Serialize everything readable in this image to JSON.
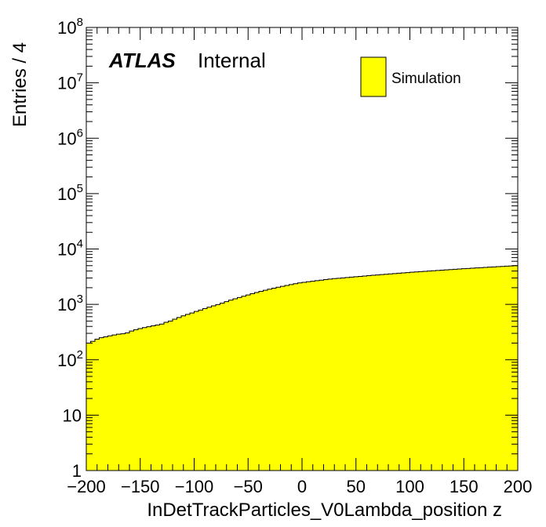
{
  "chart_data": {
    "type": "bar",
    "subtype": "histogram",
    "xlabel": "InDetTrackParticles_V0Lambda_position z",
    "ylabel": "Entries / 4",
    "xlim": [
      -200,
      200
    ],
    "ylim": [
      1,
      100000000
    ],
    "yscale": "log",
    "bin_width": 4,
    "x_tick_labels": [
      "−200",
      "−150",
      "−100",
      "−50",
      "0",
      "50",
      "100",
      "150",
      "200"
    ],
    "x_tick_values": [
      -200,
      -150,
      -100,
      -50,
      0,
      50,
      100,
      150,
      200
    ],
    "y_tick_values": [
      1,
      10,
      100,
      1000,
      10000,
      100000,
      1000000,
      10000000,
      100000000
    ],
    "y_tick_labels": [
      {
        "base": "1",
        "exp": ""
      },
      {
        "base": "10",
        "exp": ""
      },
      {
        "base": "10",
        "exp": "2"
      },
      {
        "base": "10",
        "exp": "3"
      },
      {
        "base": "10",
        "exp": "4"
      },
      {
        "base": "10",
        "exp": "5"
      },
      {
        "base": "10",
        "exp": "6"
      },
      {
        "base": "10",
        "exp": "7"
      },
      {
        "base": "10",
        "exp": "8"
      }
    ],
    "bin_edges_start": -200,
    "values": [
      200,
      215,
      235,
      250,
      260,
      270,
      280,
      290,
      295,
      305,
      330,
      350,
      365,
      380,
      395,
      410,
      425,
      440,
      475,
      500,
      540,
      580,
      620,
      660,
      700,
      745,
      790,
      840,
      890,
      940,
      990,
      1050,
      1120,
      1190,
      1260,
      1330,
      1400,
      1480,
      1560,
      1640,
      1720,
      1800,
      1880,
      1960,
      2040,
      2120,
      2200,
      2280,
      2360,
      2440,
      2500,
      2560,
      2620,
      2680,
      2740,
      2800,
      2860,
      2920,
      2960,
      3000,
      3050,
      3100,
      3150,
      3200,
      3250,
      3300,
      3350,
      3400,
      3450,
      3500,
      3550,
      3600,
      3650,
      3700,
      3750,
      3800,
      3850,
      3900,
      3950,
      4000,
      4050,
      4100,
      4150,
      4200,
      4250,
      4300,
      4350,
      4400,
      4450,
      4500,
      4550,
      4600,
      4650,
      4700,
      4750,
      4800,
      4850,
      4900,
      4950,
      5000
    ],
    "values_note_unused": "",
    "legend": [
      {
        "name": "Simulation",
        "color": "#ffff00"
      }
    ],
    "legend_position": "top-right",
    "fill_color": "#ffff00",
    "line_color": "#000000"
  },
  "labels": {
    "atlas": "ATLAS",
    "status": "Internal"
  }
}
